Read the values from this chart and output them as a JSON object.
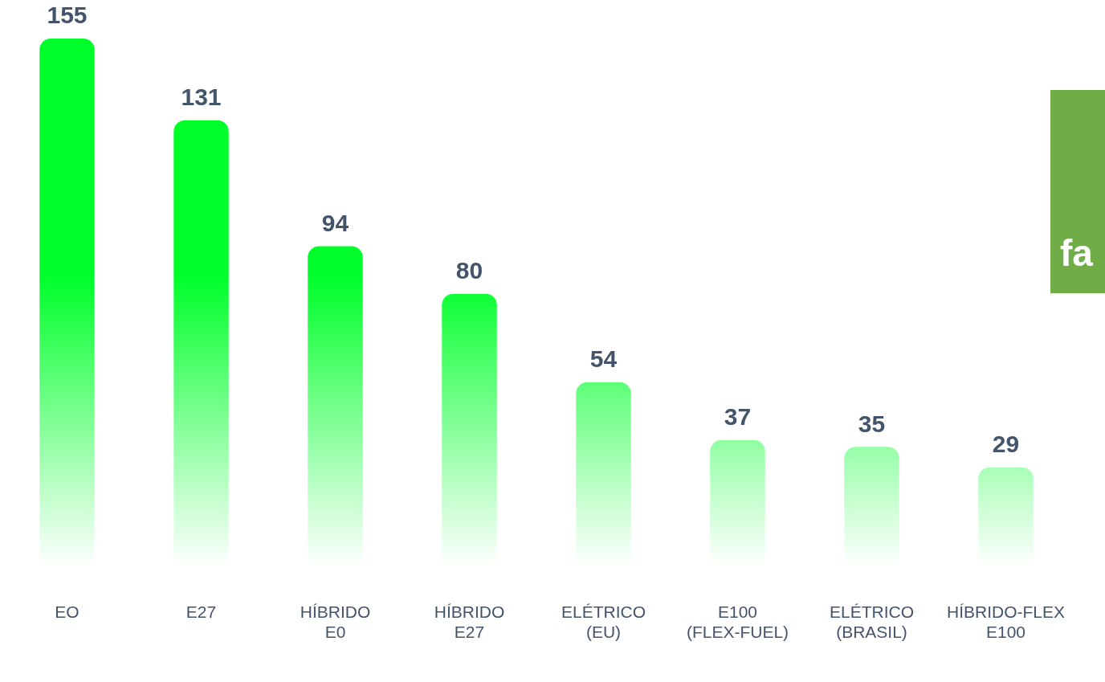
{
  "chart_data": {
    "type": "bar",
    "categories": [
      "EO",
      "E27",
      "HÍBRIDO E0",
      "HÍBRIDO E27",
      "ELÉTRICO (EU)",
      "E100 (FLEX-FUEL)",
      "ELÉTRICO (BRASIL)",
      "HÍBRIDO-FLEX E100"
    ],
    "values": [
      155,
      131,
      94,
      80,
      54,
      37,
      35,
      29
    ],
    "color": "#00ff2a",
    "ylim": [
      0,
      155
    ],
    "tick_labels": "x",
    "data_labels": true,
    "grid": false,
    "legend": false,
    "annotations": [
      "fa"
    ]
  }
}
